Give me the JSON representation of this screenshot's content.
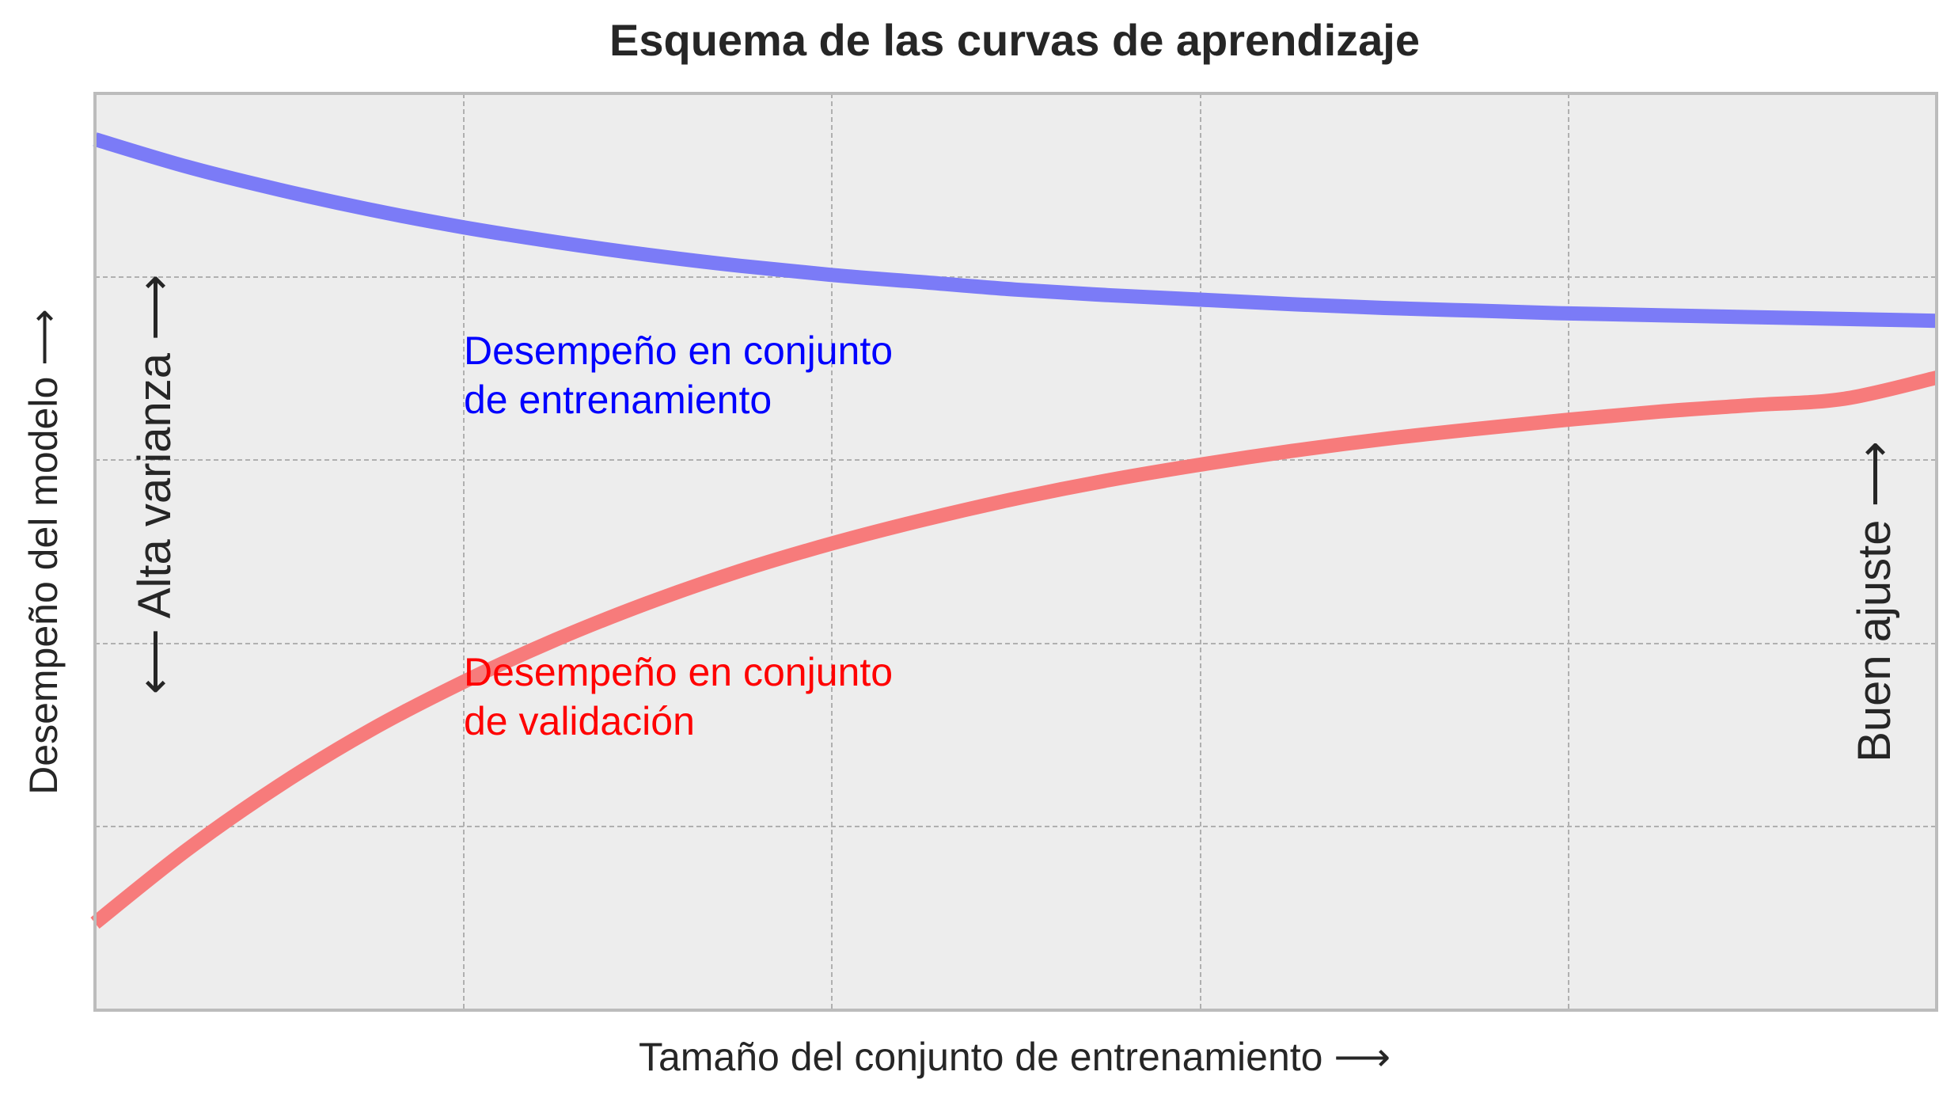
{
  "chart_data": {
    "type": "line",
    "title": "Esquema de las curvas de aprendizaje",
    "xlabel": "Tamaño del conjunto de entrenamiento  ⟶",
    "ylabel": "Desempeño del modelo  ⟶",
    "xlim": [
      0,
      1
    ],
    "ylim": [
      0,
      1
    ],
    "grid": true,
    "x": [
      0,
      0.05,
      0.1,
      0.15,
      0.2,
      0.25,
      0.3,
      0.35,
      0.4,
      0.45,
      0.5,
      0.55,
      0.6,
      0.65,
      0.7,
      0.75,
      0.8,
      0.85,
      0.9,
      0.95,
      1.0
    ],
    "series": [
      {
        "color": "#7b7bf7",
        "values": [
          0.95,
          0.92,
          0.895,
          0.873,
          0.854,
          0.838,
          0.824,
          0.812,
          0.802,
          0.794,
          0.786,
          0.78,
          0.775,
          0.77,
          0.766,
          0.763,
          0.76,
          0.758,
          0.756,
          0.754,
          0.752
        ]
      },
      {
        "color": "#f77b7b",
        "values": [
          0.095,
          0.175,
          0.245,
          0.306,
          0.358,
          0.404,
          0.444,
          0.479,
          0.509,
          0.535,
          0.558,
          0.578,
          0.595,
          0.61,
          0.623,
          0.634,
          0.644,
          0.653,
          0.66,
          0.667,
          0.69
        ]
      }
    ],
    "annotations": {
      "train_line1": "Desempeño en conjunto",
      "train_line2": "de entrenamiento",
      "train_color": "#0000ff",
      "val_line1": "Desempeño en conjunto",
      "val_line2": "de validación",
      "val_color": "#ff0000",
      "high_variance": "⟵  Alta varianza  ⟶",
      "good_fit": "Buen ajuste  ⟶"
    },
    "colors": {
      "plot_background": "#ededed",
      "frame": "#bcbcbc"
    }
  }
}
